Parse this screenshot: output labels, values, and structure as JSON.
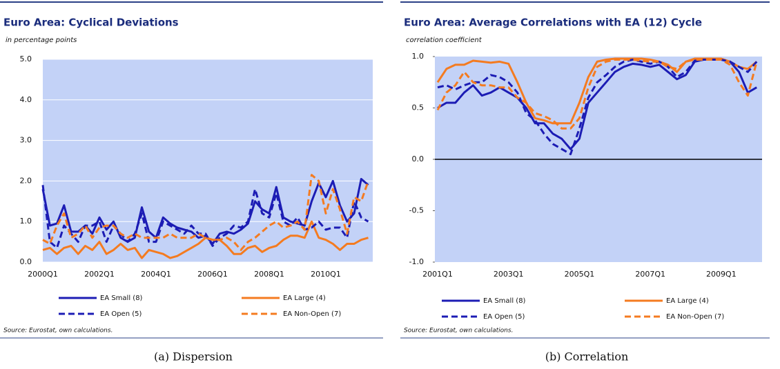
{
  "chart_data": [
    {
      "type": "line",
      "title": "Euro Area: Cyclical Deviations",
      "subtitle": "in percentage points",
      "source": "Source: Eurostat, own calculations.",
      "caption": "(a) Dispersion",
      "categories": [
        "2000Q1",
        null,
        null,
        null,
        null,
        null,
        null,
        null,
        "2002Q1",
        null,
        null,
        null,
        null,
        null,
        null,
        null,
        "2004Q1",
        null,
        null,
        null,
        null,
        null,
        null,
        null,
        "2006Q1",
        null,
        null,
        null,
        null,
        null,
        null,
        null,
        "2008Q1",
        null,
        null,
        null,
        null,
        null,
        null,
        null,
        "2010Q1",
        null,
        null,
        null,
        null,
        null,
        null
      ],
      "ylim": [
        0,
        5
      ],
      "yticks": [
        {
          "value": 0,
          "label": "0.0"
        },
        {
          "value": 1,
          "label": "1.0"
        },
        {
          "value": 2,
          "label": "2.0"
        },
        {
          "value": 3,
          "label": "3.0"
        },
        {
          "value": 4,
          "label": "4.0"
        },
        {
          "value": 5,
          "label": "5.0"
        }
      ],
      "grid": true,
      "zero_line": false,
      "series": [
        {
          "name": "EA Small (8)",
          "color": "#1c1cb4",
          "dashed": false,
          "values": [
            1.8,
            0.9,
            0.95,
            1.4,
            0.75,
            0.75,
            0.9,
            0.7,
            1.1,
            0.8,
            1.0,
            0.6,
            0.5,
            0.6,
            1.35,
            0.75,
            0.6,
            1.1,
            0.95,
            0.85,
            0.8,
            0.75,
            0.6,
            0.65,
            0.45,
            0.7,
            0.75,
            0.7,
            0.8,
            0.95,
            1.5,
            1.3,
            1.2,
            1.85,
            1.1,
            1.0,
            0.95,
            0.9,
            1.5,
            1.95,
            1.6,
            2.0,
            1.4,
            1.0,
            1.2,
            2.05,
            1.9
          ]
        },
        {
          "name": "EA Large (4)",
          "color": "#f47b20",
          "dashed": false,
          "values": [
            0.3,
            0.35,
            0.2,
            0.35,
            0.4,
            0.2,
            0.4,
            0.3,
            0.5,
            0.2,
            0.3,
            0.45,
            0.3,
            0.35,
            0.1,
            0.3,
            0.25,
            0.2,
            0.1,
            0.15,
            0.25,
            0.35,
            0.45,
            0.6,
            0.55,
            0.55,
            0.4,
            0.2,
            0.2,
            0.35,
            0.4,
            0.25,
            0.35,
            0.4,
            0.55,
            0.65,
            0.65,
            0.6,
            1.0,
            0.6,
            0.55,
            0.45,
            0.3,
            0.45,
            0.45,
            0.55,
            0.6
          ]
        },
        {
          "name": "EA Open (5)",
          "color": "#1c1cb4",
          "dashed": true,
          "values": [
            1.9,
            0.5,
            0.35,
            0.9,
            0.7,
            0.5,
            0.9,
            0.9,
            1.0,
            0.5,
            0.9,
            0.7,
            0.5,
            0.7,
            1.2,
            0.5,
            0.5,
            1.0,
            0.9,
            0.8,
            0.7,
            0.9,
            0.7,
            0.7,
            0.4,
            0.6,
            0.7,
            0.9,
            0.85,
            1.0,
            1.8,
            1.2,
            1.1,
            1.7,
            1.0,
            0.9,
            1.1,
            0.8,
            0.85,
            1.0,
            0.8,
            0.85,
            0.85,
            0.6,
            1.5,
            1.1,
            1.0
          ]
        },
        {
          "name": "EA Non-Open (7)",
          "color": "#f47b20",
          "dashed": true,
          "values": [
            0.55,
            0.45,
            0.9,
            1.2,
            0.6,
            0.7,
            0.9,
            0.6,
            0.85,
            0.9,
            0.9,
            0.7,
            0.6,
            0.7,
            0.6,
            0.6,
            0.6,
            0.6,
            0.7,
            0.6,
            0.6,
            0.6,
            0.7,
            0.6,
            0.55,
            0.55,
            0.6,
            0.5,
            0.3,
            0.5,
            0.6,
            0.75,
            0.9,
            1.0,
            0.85,
            0.9,
            1.0,
            0.8,
            2.15,
            2.0,
            1.2,
            1.8,
            1.3,
            0.7,
            1.6,
            1.5,
            2.0
          ]
        }
      ]
    },
    {
      "type": "line",
      "title": "Euro Area: Average Correlations with EA (12) Cycle",
      "subtitle": "correlation coefficient",
      "source": "Source: Eurostat, own calculations.",
      "caption": "(b) Correlation",
      "categories": [
        "2001Q1",
        null,
        null,
        null,
        null,
        null,
        null,
        null,
        "2003Q1",
        null,
        null,
        null,
        null,
        null,
        null,
        null,
        "2005Q1",
        null,
        null,
        null,
        null,
        null,
        null,
        null,
        "2007Q1",
        null,
        null,
        null,
        null,
        null,
        null,
        null,
        "2009Q1",
        null,
        null,
        null,
        null
      ],
      "ylim": [
        -1,
        1
      ],
      "yticks": [
        {
          "value": -1,
          "label": "-1.0"
        },
        {
          "value": -0.5,
          "label": "-0.5"
        },
        {
          "value": 0,
          "label": "0.0"
        },
        {
          "value": 0.5,
          "label": "0.5"
        },
        {
          "value": 1,
          "label": "1.0"
        }
      ],
      "grid": false,
      "zero_line": true,
      "series": [
        {
          "name": "EA Small (8)",
          "color": "#1c1cb4",
          "dashed": false,
          "values": [
            0.5,
            0.55,
            0.55,
            0.65,
            0.72,
            0.62,
            0.65,
            0.7,
            0.65,
            0.6,
            0.5,
            0.35,
            0.35,
            0.25,
            0.2,
            0.1,
            0.2,
            0.55,
            0.65,
            0.75,
            0.85,
            0.9,
            0.93,
            0.92,
            0.9,
            0.92,
            0.85,
            0.78,
            0.82,
            0.95,
            0.97,
            0.97,
            0.97,
            0.95,
            0.85,
            0.65,
            0.7
          ]
        },
        {
          "name": "EA Large (4)",
          "color": "#f47b20",
          "dashed": false,
          "values": [
            0.75,
            0.88,
            0.92,
            0.92,
            0.96,
            0.95,
            0.94,
            0.95,
            0.93,
            0.75,
            0.55,
            0.4,
            0.38,
            0.35,
            0.35,
            0.35,
            0.55,
            0.8,
            0.95,
            0.97,
            0.98,
            0.98,
            0.98,
            0.98,
            0.97,
            0.95,
            0.92,
            0.85,
            0.95,
            0.98,
            0.98,
            0.98,
            0.98,
            0.95,
            0.9,
            0.88,
            0.95
          ]
        },
        {
          "name": "EA Open (5)",
          "color": "#1c1cb4",
          "dashed": true,
          "values": [
            0.7,
            0.72,
            0.68,
            0.72,
            0.75,
            0.75,
            0.82,
            0.8,
            0.75,
            0.65,
            0.45,
            0.38,
            0.25,
            0.15,
            0.1,
            0.05,
            0.3,
            0.6,
            0.75,
            0.82,
            0.9,
            0.95,
            0.97,
            0.95,
            0.93,
            0.95,
            0.9,
            0.8,
            0.85,
            0.96,
            0.97,
            0.97,
            0.97,
            0.95,
            0.9,
            0.85,
            0.95
          ]
        },
        {
          "name": "EA Non-Open (7)",
          "color": "#f47b20",
          "dashed": true,
          "values": [
            0.48,
            0.65,
            0.72,
            0.85,
            0.75,
            0.72,
            0.72,
            0.7,
            0.7,
            0.6,
            0.55,
            0.45,
            0.42,
            0.38,
            0.3,
            0.3,
            0.4,
            0.7,
            0.9,
            0.95,
            0.97,
            0.97,
            0.97,
            0.96,
            0.95,
            0.95,
            0.9,
            0.88,
            0.95,
            0.97,
            0.97,
            0.97,
            0.97,
            0.92,
            0.75,
            0.62,
            0.95
          ]
        }
      ]
    }
  ]
}
